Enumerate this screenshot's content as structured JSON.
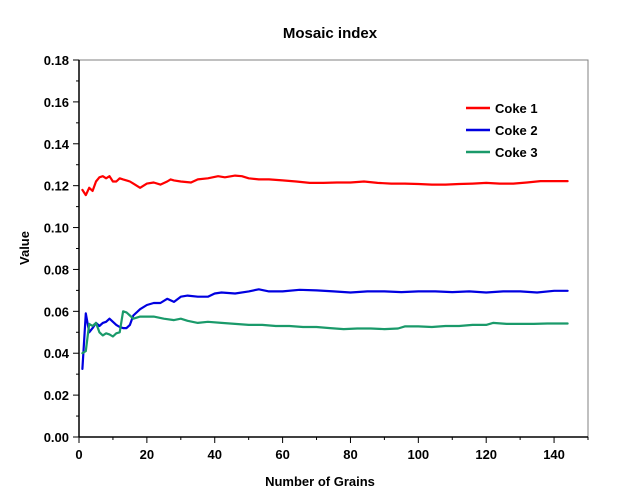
{
  "chart_data": {
    "type": "line",
    "title": "Mosaic index",
    "xlabel": "Number of Grains",
    "ylabel": "Value",
    "xlim": [
      0,
      150
    ],
    "ylim": [
      0,
      0.18
    ],
    "xticks": [
      "0",
      "20",
      "40",
      "60",
      "80",
      "100",
      "120",
      "140"
    ],
    "yticks": [
      "0.00",
      "0.02",
      "0.04",
      "0.06",
      "0.08",
      "0.10",
      "0.12",
      "0.14",
      "0.16",
      "0.18"
    ],
    "grid": false,
    "legend_position": "top-right",
    "series": [
      {
        "name": "Coke 1",
        "color": "#ff0000",
        "points": [
          [
            1,
            0.118
          ],
          [
            2,
            0.1155
          ],
          [
            3,
            0.119
          ],
          [
            4,
            0.1175
          ],
          [
            5,
            0.122
          ],
          [
            6,
            0.124
          ],
          [
            7,
            0.1245
          ],
          [
            8,
            0.1235
          ],
          [
            9,
            0.1245
          ],
          [
            10,
            0.122
          ],
          [
            11,
            0.122
          ],
          [
            12,
            0.1235
          ],
          [
            13,
            0.123
          ],
          [
            14,
            0.1225
          ],
          [
            15,
            0.122
          ],
          [
            16,
            0.121
          ],
          [
            17,
            0.12
          ],
          [
            18,
            0.119
          ],
          [
            20,
            0.121
          ],
          [
            22,
            0.1215
          ],
          [
            24,
            0.1205
          ],
          [
            26,
            0.122
          ],
          [
            27,
            0.123
          ],
          [
            28,
            0.1225
          ],
          [
            30,
            0.122
          ],
          [
            33,
            0.1215
          ],
          [
            35,
            0.123
          ],
          [
            38,
            0.1235
          ],
          [
            41,
            0.1245
          ],
          [
            43,
            0.124
          ],
          [
            46,
            0.1248
          ],
          [
            48,
            0.1245
          ],
          [
            50,
            0.1235
          ],
          [
            53,
            0.123
          ],
          [
            56,
            0.123
          ],
          [
            60,
            0.1225
          ],
          [
            64,
            0.122
          ],
          [
            68,
            0.1213
          ],
          [
            72,
            0.1213
          ],
          [
            76,
            0.1215
          ],
          [
            80,
            0.1215
          ],
          [
            84,
            0.122
          ],
          [
            88,
            0.1213
          ],
          [
            92,
            0.121
          ],
          [
            96,
            0.121
          ],
          [
            100,
            0.1208
          ],
          [
            104,
            0.1205
          ],
          [
            108,
            0.1205
          ],
          [
            112,
            0.1208
          ],
          [
            116,
            0.121
          ],
          [
            120,
            0.1213
          ],
          [
            124,
            0.121
          ],
          [
            128,
            0.121
          ],
          [
            132,
            0.1215
          ],
          [
            136,
            0.1222
          ],
          [
            140,
            0.1222
          ],
          [
            144,
            0.1222
          ]
        ]
      },
      {
        "name": "Coke 2",
        "color": "#0000e0",
        "points": [
          [
            1,
            0.0325
          ],
          [
            2,
            0.059
          ],
          [
            3,
            0.05
          ],
          [
            4,
            0.052
          ],
          [
            5,
            0.0545
          ],
          [
            6,
            0.053
          ],
          [
            7,
            0.0545
          ],
          [
            8,
            0.055
          ],
          [
            9,
            0.0565
          ],
          [
            10,
            0.055
          ],
          [
            11,
            0.0535
          ],
          [
            12,
            0.0525
          ],
          [
            13,
            0.052
          ],
          [
            14,
            0.052
          ],
          [
            15,
            0.0535
          ],
          [
            16,
            0.058
          ],
          [
            18,
            0.061
          ],
          [
            20,
            0.063
          ],
          [
            22,
            0.064
          ],
          [
            24,
            0.064
          ],
          [
            26,
            0.066
          ],
          [
            28,
            0.0645
          ],
          [
            30,
            0.067
          ],
          [
            32,
            0.0675
          ],
          [
            35,
            0.067
          ],
          [
            38,
            0.067
          ],
          [
            40,
            0.0685
          ],
          [
            42,
            0.069
          ],
          [
            46,
            0.0685
          ],
          [
            50,
            0.0695
          ],
          [
            53,
            0.0705
          ],
          [
            56,
            0.0695
          ],
          [
            60,
            0.0695
          ],
          [
            65,
            0.0703
          ],
          [
            70,
            0.07
          ],
          [
            75,
            0.0695
          ],
          [
            80,
            0.069
          ],
          [
            85,
            0.0695
          ],
          [
            90,
            0.0695
          ],
          [
            95,
            0.0692
          ],
          [
            100,
            0.0695
          ],
          [
            105,
            0.0695
          ],
          [
            110,
            0.0692
          ],
          [
            115,
            0.0695
          ],
          [
            120,
            0.069
          ],
          [
            125,
            0.0695
          ],
          [
            130,
            0.0695
          ],
          [
            135,
            0.069
          ],
          [
            140,
            0.0698
          ],
          [
            144,
            0.0698
          ]
        ]
      },
      {
        "name": "Coke 3",
        "color": "#1a9a6a",
        "points": [
          [
            1,
            0.04
          ],
          [
            2,
            0.041
          ],
          [
            3,
            0.054
          ],
          [
            4,
            0.053
          ],
          [
            5,
            0.0545
          ],
          [
            6,
            0.05
          ],
          [
            7,
            0.0485
          ],
          [
            8,
            0.0495
          ],
          [
            9,
            0.049
          ],
          [
            10,
            0.048
          ],
          [
            11,
            0.0495
          ],
          [
            12,
            0.05
          ],
          [
            13,
            0.06
          ],
          [
            14,
            0.0595
          ],
          [
            15,
            0.058
          ],
          [
            16,
            0.0565
          ],
          [
            18,
            0.0575
          ],
          [
            20,
            0.0575
          ],
          [
            22,
            0.0575
          ],
          [
            25,
            0.0565
          ],
          [
            28,
            0.0558
          ],
          [
            30,
            0.0565
          ],
          [
            32,
            0.0555
          ],
          [
            35,
            0.0545
          ],
          [
            38,
            0.055
          ],
          [
            42,
            0.0545
          ],
          [
            46,
            0.054
          ],
          [
            50,
            0.0535
          ],
          [
            54,
            0.0535
          ],
          [
            58,
            0.053
          ],
          [
            62,
            0.053
          ],
          [
            66,
            0.0525
          ],
          [
            70,
            0.0525
          ],
          [
            74,
            0.052
          ],
          [
            78,
            0.0515
          ],
          [
            82,
            0.0518
          ],
          [
            86,
            0.0518
          ],
          [
            90,
            0.0515
          ],
          [
            94,
            0.0518
          ],
          [
            96,
            0.0528
          ],
          [
            100,
            0.0528
          ],
          [
            104,
            0.0525
          ],
          [
            108,
            0.053
          ],
          [
            112,
            0.053
          ],
          [
            116,
            0.0535
          ],
          [
            120,
            0.0535
          ],
          [
            122,
            0.0545
          ],
          [
            126,
            0.054
          ],
          [
            130,
            0.054
          ],
          [
            134,
            0.054
          ],
          [
            138,
            0.0542
          ],
          [
            144,
            0.0542
          ]
        ]
      }
    ]
  }
}
